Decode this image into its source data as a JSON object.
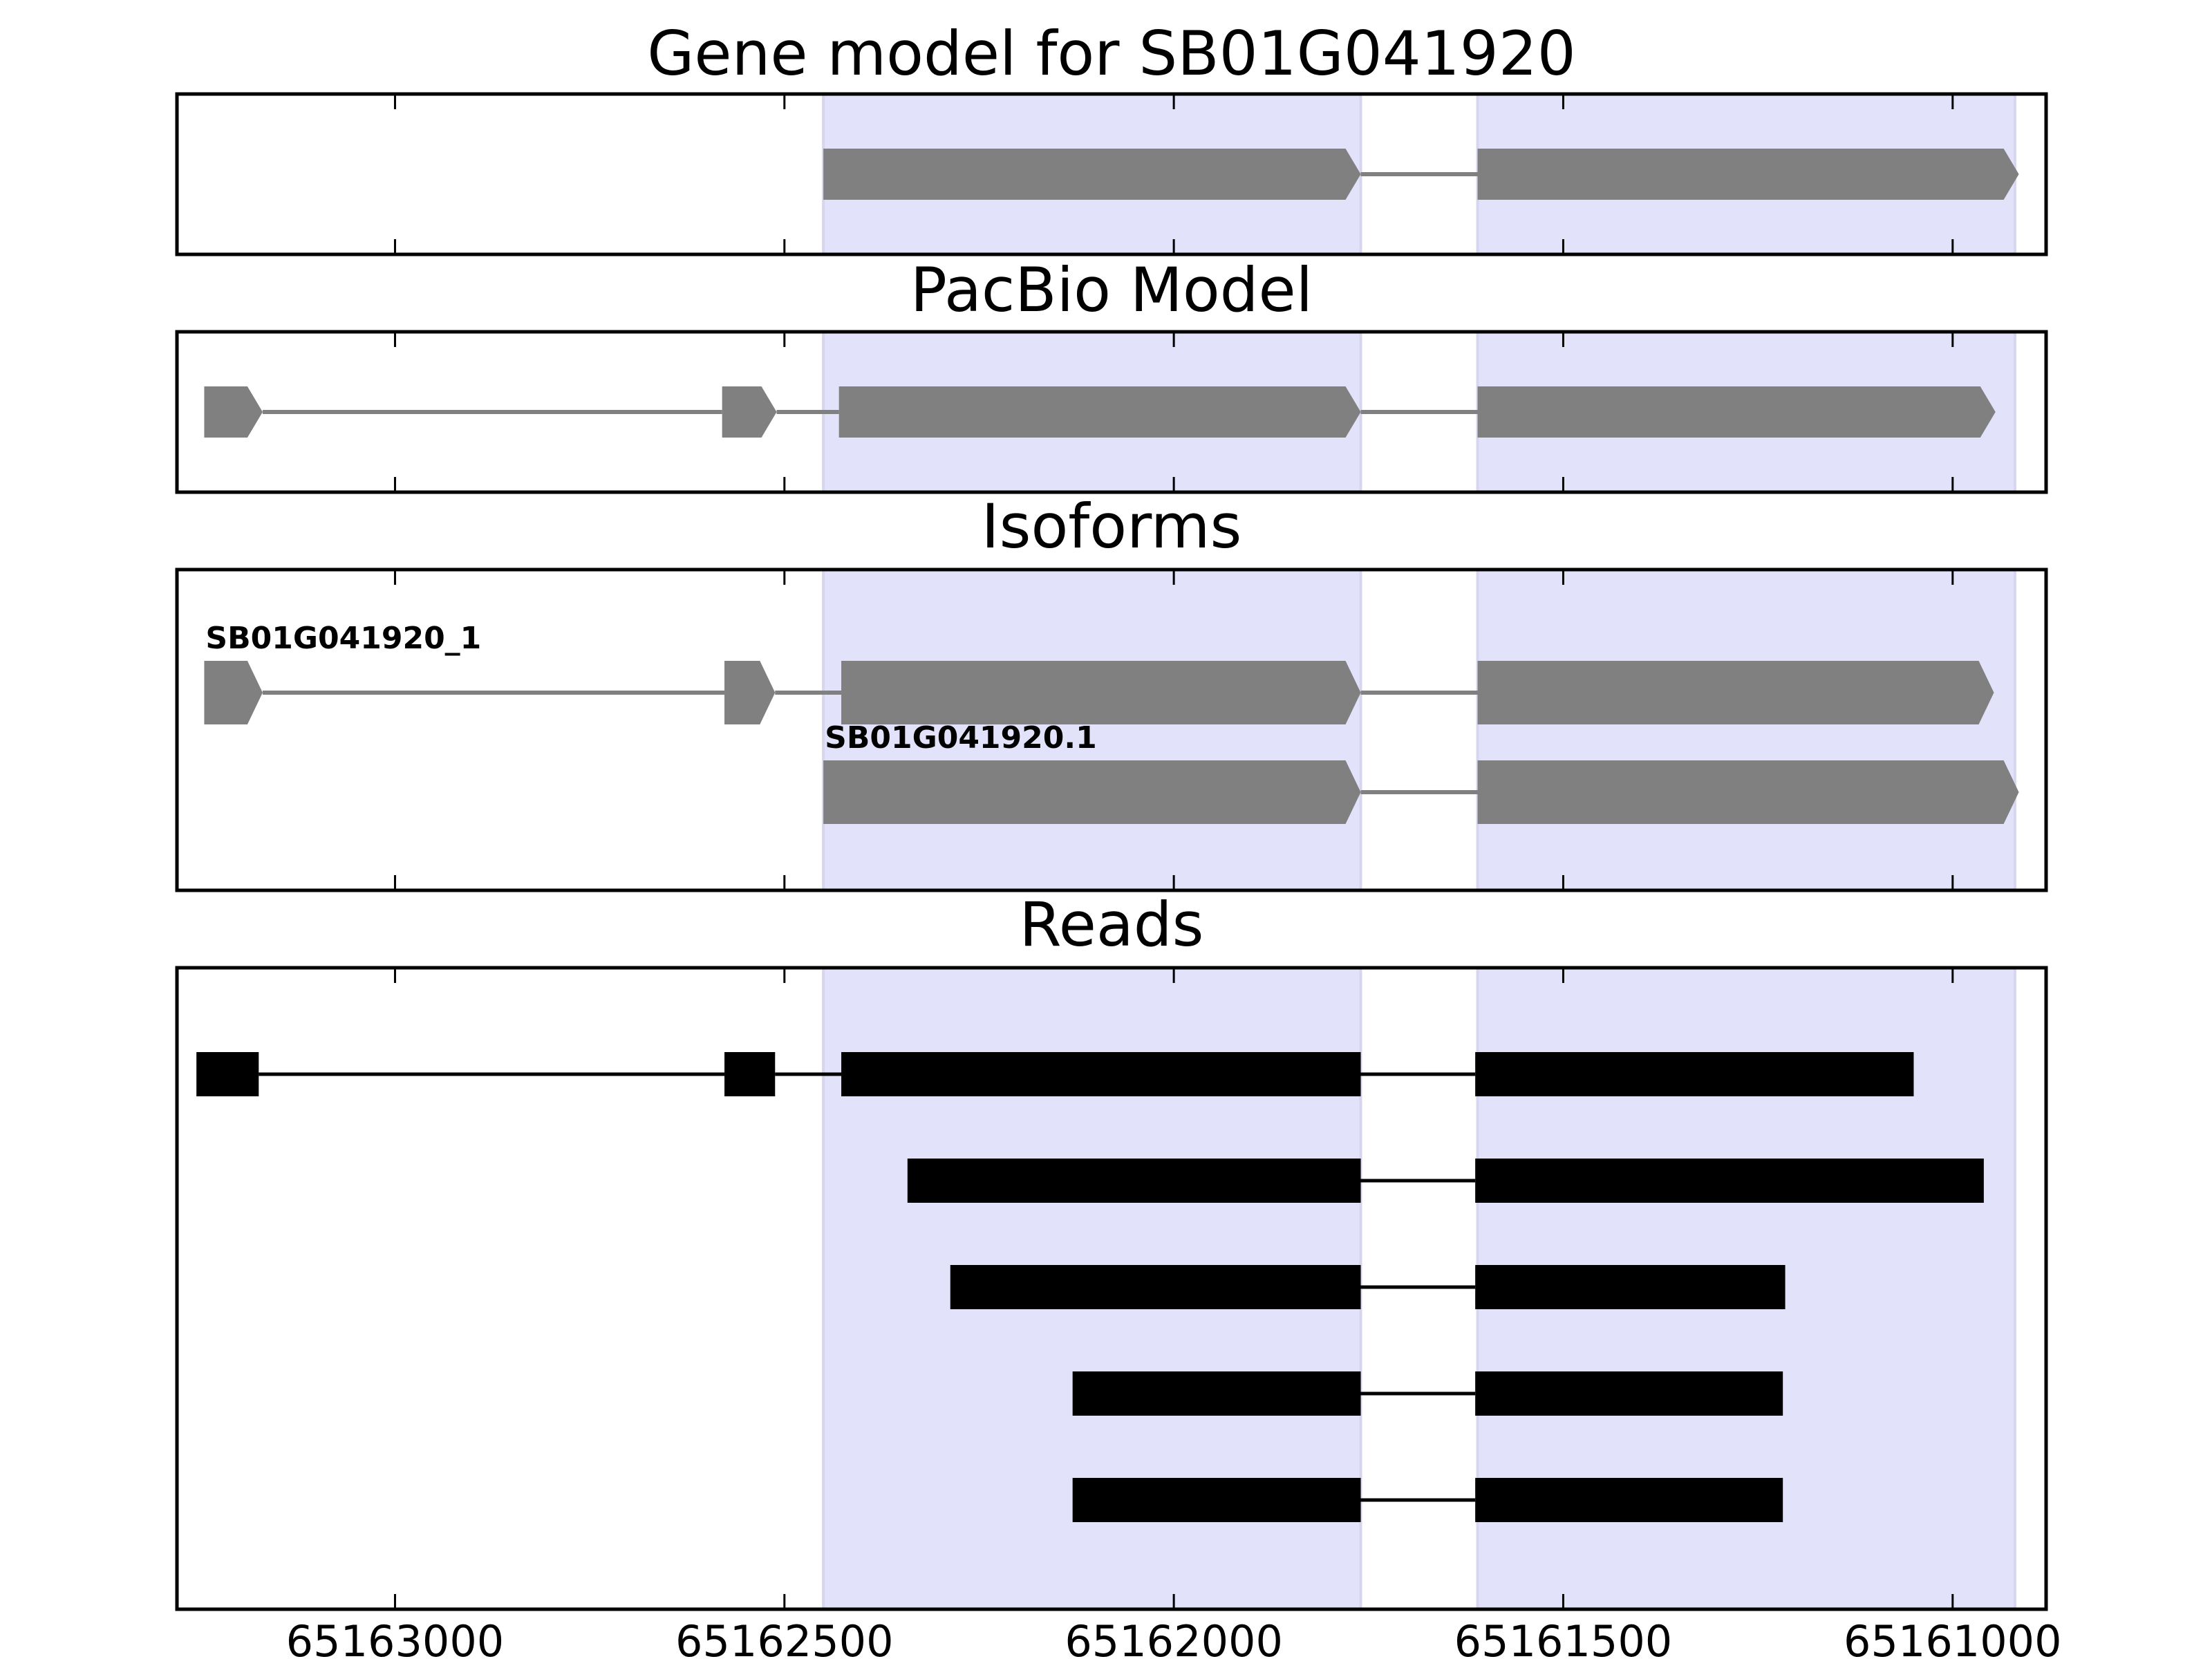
{
  "chart_data": [
    {
      "type": "gene-model",
      "title": "Gene model for SB01G041920",
      "xlim": [
        65163280,
        65160880
      ],
      "xticks": [
        65163000,
        65162500,
        65162000,
        65161500,
        65161000
      ],
      "xtick_labels": [
        "65163000",
        "65162500",
        "65162000",
        "65161500",
        "65161000"
      ],
      "highlight_regions": [
        [
          65162450,
          65161760
        ],
        [
          65161610,
          65160920
        ]
      ],
      "strand": "-",
      "color": "#808080",
      "models": [
        {
          "label": "",
          "exons": [
            [
              65162450,
              65161760
            ],
            [
              65161610,
              65160915
            ]
          ]
        }
      ]
    },
    {
      "type": "gene-model",
      "title": "PacBio Model",
      "xlim": [
        65163280,
        65160880
      ],
      "xticks": [
        65163000,
        65162500,
        65162000,
        65161500,
        65161000
      ],
      "highlight_regions": [
        [
          65162450,
          65161760
        ],
        [
          65161610,
          65160920
        ]
      ],
      "strand": "-",
      "color": "#808080",
      "models": [
        {
          "label": "",
          "exons": [
            [
              65163245,
              65163170
            ],
            [
              65162580,
              65162510
            ],
            [
              65162430,
              65161760
            ],
            [
              65161610,
              65160945
            ]
          ]
        }
      ]
    },
    {
      "type": "gene-model",
      "title": "Isoforms",
      "xlim": [
        65163280,
        65160880
      ],
      "xticks": [
        65163000,
        65162500,
        65162000,
        65161500,
        65161000
      ],
      "highlight_regions": [
        [
          65162450,
          65161760
        ],
        [
          65161610,
          65160920
        ]
      ],
      "strand": "-",
      "color": "#808080",
      "models": [
        {
          "label": "SB01G041920_1",
          "exons": [
            [
              65163245,
              65163170
            ],
            [
              65162577,
              65162512
            ],
            [
              65162427,
              65161760
            ],
            [
              65161610,
              65160947
            ]
          ]
        },
        {
          "label": "SB01G041920.1",
          "exons": [
            [
              65162450,
              65161760
            ],
            [
              65161610,
              65160915
            ]
          ]
        }
      ]
    },
    {
      "type": "reads",
      "title": "Reads",
      "xlim": [
        65163280,
        65160880
      ],
      "xticks": [
        65163000,
        65162500,
        65162000,
        65161500,
        65161000
      ],
      "xtick_labels": [
        "65163000",
        "65162500",
        "65162000",
        "65161500",
        "65161000"
      ],
      "highlight_regions": [
        [
          65162450,
          65161760
        ],
        [
          65161610,
          65160920
        ]
      ],
      "color": "#000000",
      "reads": [
        [
          [
            65163255,
            65163175
          ],
          [
            65162577,
            65162512
          ],
          [
            65162427,
            65161760
          ],
          [
            65161613,
            65161050
          ]
        ],
        [
          [
            65162342,
            65161760
          ],
          [
            65161613,
            65160960
          ]
        ],
        [
          [
            65162287,
            65161760
          ],
          [
            65161613,
            65161215
          ]
        ],
        [
          [
            65162130,
            65161760
          ],
          [
            65161613,
            65161218
          ]
        ],
        [
          [
            65162130,
            65161760
          ],
          [
            65161613,
            65161218
          ]
        ]
      ]
    }
  ]
}
